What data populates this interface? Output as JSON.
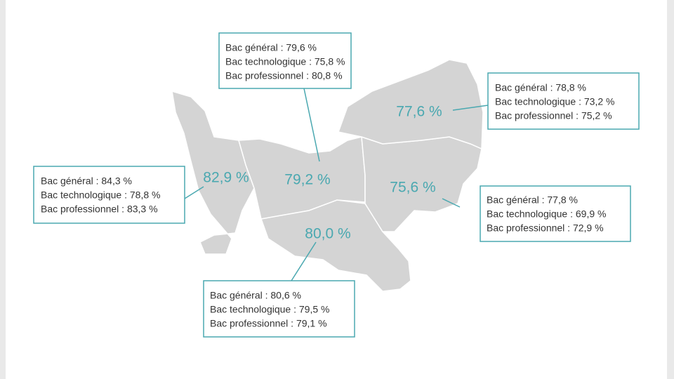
{
  "regions": [
    {
      "total": "82,9 %",
      "details": [
        "Bac général : 84,3 %",
        "Bac technologique : 78,8 %",
        "Bac professionnel : 83,3 %"
      ]
    },
    {
      "total": "79,2 %",
      "details": [
        "Bac général : 79,6 %",
        "Bac technologique : 75,8 %",
        "Bac professionnel : 80,8 %"
      ]
    },
    {
      "total": "77,6 %",
      "details": [
        "Bac général : 78,8 %",
        "Bac technologique : 73,2 %",
        "Bac professionnel : 75,2 %"
      ]
    },
    {
      "total": "75,6 %",
      "details": [
        "Bac général : 77,8 %",
        "Bac technologique : 69,9 %",
        "Bac professionnel : 72,9 %"
      ]
    },
    {
      "total": "80,0 %",
      "details": [
        "Bac général : 80,6 %",
        "Bac technologique : 79,5 %",
        "Bac professionnel : 79,1 %"
      ]
    }
  ]
}
